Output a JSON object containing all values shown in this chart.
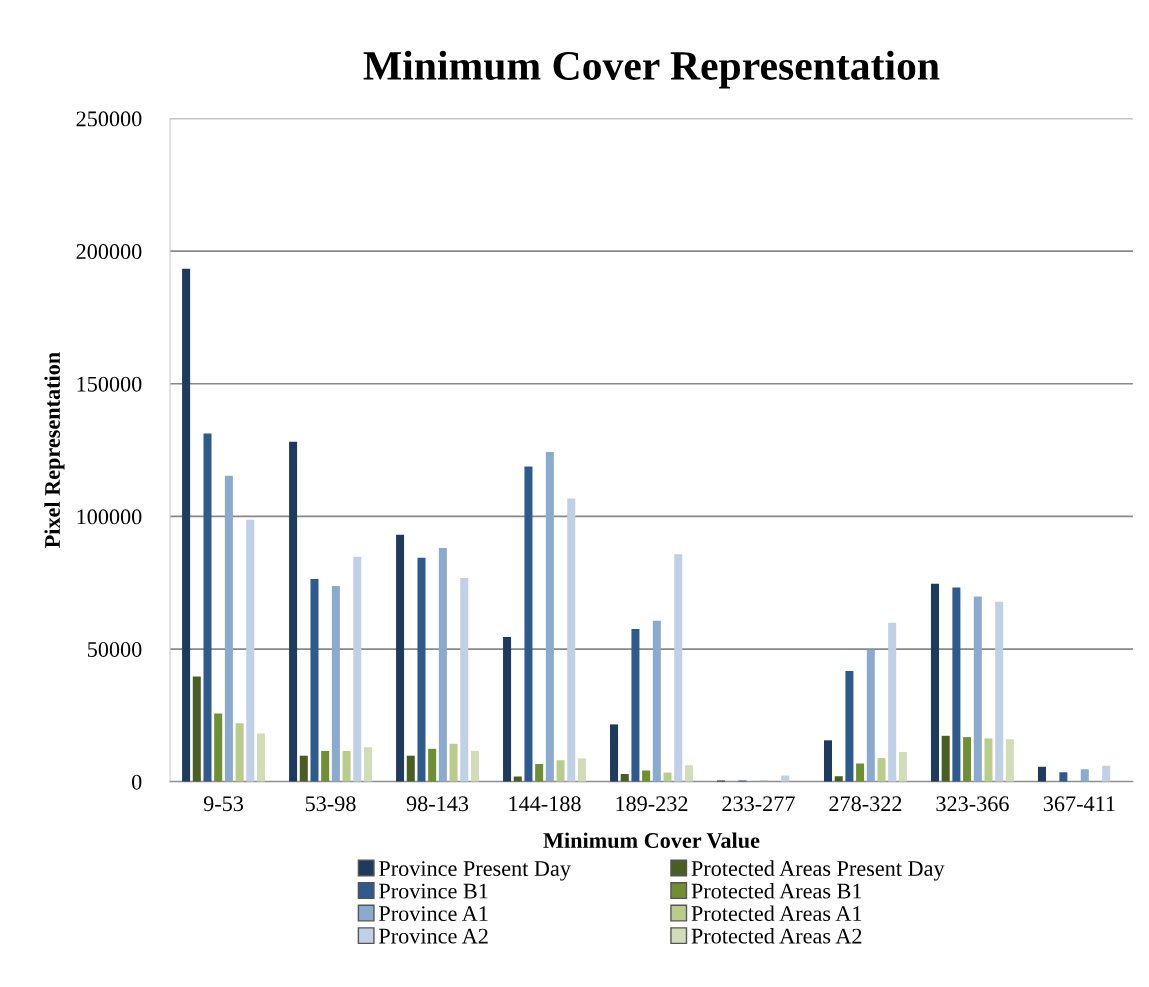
{
  "chart_data": {
    "type": "bar",
    "title": "Minimum Cover Representation",
    "xlabel": "Minimum Cover Value",
    "ylabel": "Pixel Representation",
    "categories": [
      "9-53",
      "53-98",
      "98-143",
      "144-188",
      "189-232",
      "233-277",
      "278-322",
      "323-366",
      "367-411"
    ],
    "series": [
      {
        "name": "Province Present Day",
        "color": "#1f3a5f",
        "values": [
          193300,
          128100,
          93100,
          54500,
          21600,
          500,
          15600,
          74600,
          5600
        ]
      },
      {
        "name": "Protected Areas Present Day",
        "color": "#4a5e23",
        "values": [
          39700,
          9800,
          9800,
          2000,
          2900,
          0,
          2100,
          17300,
          0
        ]
      },
      {
        "name": "Province B1",
        "color": "#2f5a8e",
        "values": [
          131200,
          76400,
          84400,
          118800,
          57600,
          500,
          41700,
          73200,
          3600
        ]
      },
      {
        "name": "Protected Areas B1",
        "color": "#6f8f32",
        "values": [
          25700,
          11600,
          12400,
          6700,
          4200,
          0,
          6900,
          16800,
          0
        ]
      },
      {
        "name": "Province A1",
        "color": "#8aaad0",
        "values": [
          115300,
          73800,
          88100,
          124300,
          60700,
          500,
          49700,
          69800,
          4700
        ]
      },
      {
        "name": "Protected Areas A1",
        "color": "#b9cc8c",
        "values": [
          22000,
          11600,
          14300,
          8100,
          3500,
          0,
          8900,
          16300,
          0
        ]
      },
      {
        "name": "Province A2",
        "color": "#c0d0e6",
        "values": [
          98700,
          84800,
          76800,
          106700,
          85700,
          2300,
          59900,
          67800,
          6000
        ]
      },
      {
        "name": "Protected Areas A2",
        "color": "#d2dcb6",
        "values": [
          18200,
          13000,
          11600,
          8800,
          6200,
          0,
          11200,
          16000,
          0
        ]
      }
    ],
    "ylim": [
      0,
      250000
    ],
    "yticks": [
      0,
      50000,
      100000,
      150000,
      200000,
      250000
    ],
    "grid": "y",
    "legend": "bottom"
  }
}
